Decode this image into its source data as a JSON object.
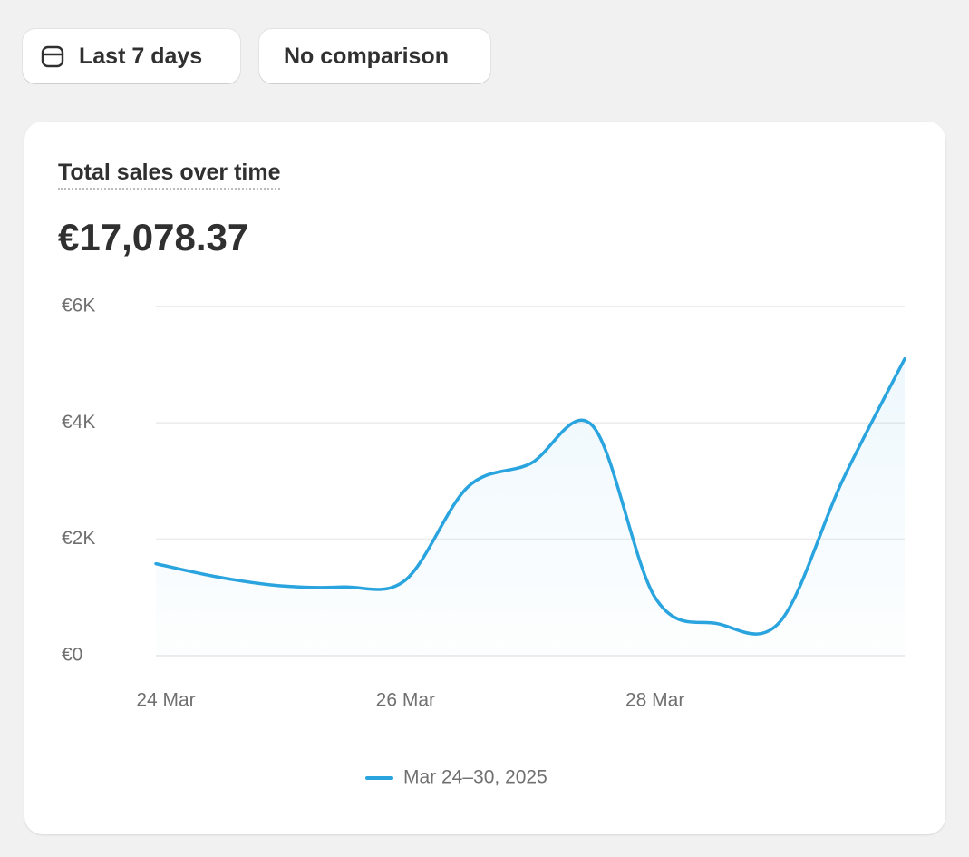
{
  "toolbar": {
    "date_range": "Last 7 days",
    "comparison": "No comparison"
  },
  "chart_data": {
    "type": "line",
    "title": "Total sales over time",
    "total": "€17,078.37",
    "categories": [
      "24 Mar",
      null,
      null,
      null,
      "26 Mar",
      null,
      null,
      null,
      "28 Mar",
      null,
      null,
      null,
      null
    ],
    "series": [
      {
        "name": "Mar 24–30, 2025",
        "color": "#2aa4de",
        "values": [
          1580,
          1350,
          1200,
          1180,
          1300,
          2900,
          3300,
          3950,
          1000,
          550,
          580,
          3000,
          5100
        ]
      }
    ],
    "ylim": [
      0,
      6000
    ],
    "yticks": [
      {
        "value": 0,
        "label": "€0"
      },
      {
        "value": 2000,
        "label": "€2K"
      },
      {
        "value": 4000,
        "label": "€4K"
      },
      {
        "value": 6000,
        "label": "€6K"
      }
    ],
    "grid": true,
    "legend": "bottom"
  }
}
